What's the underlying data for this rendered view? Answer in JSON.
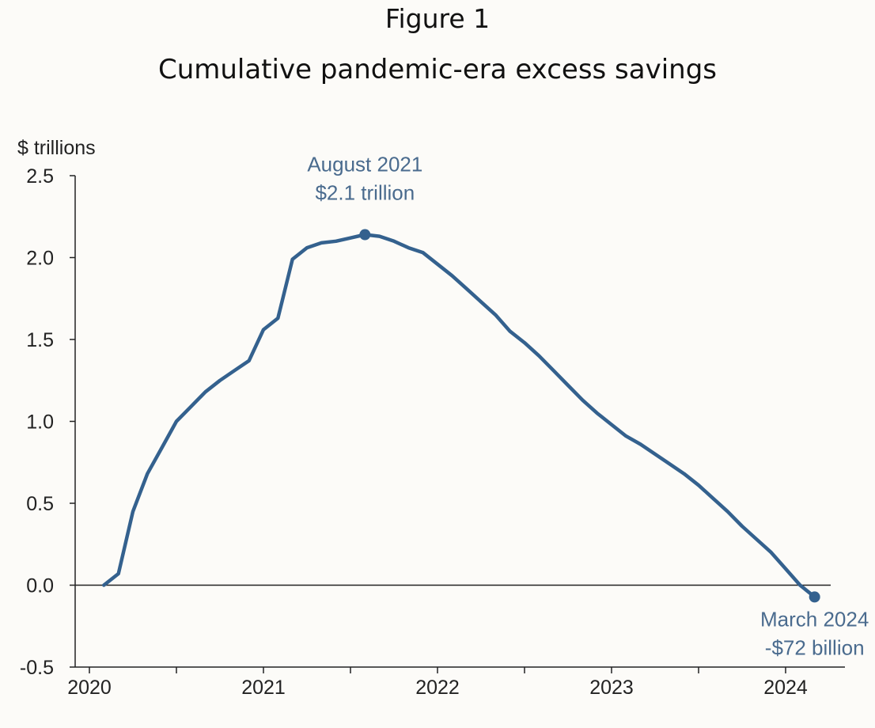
{
  "figure_label": "Figure 1",
  "title": "Cumulative pandemic-era excess savings",
  "colors": {
    "line": "#34618e",
    "annotation": "#4a6b8e",
    "axis": "#222222",
    "background": "#fcfbf8"
  },
  "chart_data": {
    "type": "line",
    "title": "Cumulative pandemic-era excess savings",
    "ylabel": "$ trillions",
    "xlabel": "",
    "ylim": [
      -0.5,
      2.5
    ],
    "xlim": [
      2020,
      2024.5
    ],
    "y_ticks": [
      "2.5",
      "2.0",
      "1.5",
      "1.0",
      "0.5",
      "0.0",
      "-0.5"
    ],
    "y_tick_values": [
      2.5,
      2.0,
      1.5,
      1.0,
      0.5,
      0.0,
      -0.5
    ],
    "x_ticks": [
      "2020",
      "2021",
      "2022",
      "2023",
      "2024"
    ],
    "x_tick_values": [
      2020,
      2021,
      2022,
      2023,
      2024
    ],
    "grid": false,
    "zero_line": true,
    "series": [
      {
        "color": "#34618e",
        "x": [
          "2020-02",
          "2020-03",
          "2020-04",
          "2020-05",
          "2020-06",
          "2020-07",
          "2020-08",
          "2020-09",
          "2020-10",
          "2020-11",
          "2020-12",
          "2021-01",
          "2021-02",
          "2021-03",
          "2021-04",
          "2021-05",
          "2021-06",
          "2021-07",
          "2021-08",
          "2021-09",
          "2021-10",
          "2021-11",
          "2021-12",
          "2022-01",
          "2022-02",
          "2022-03",
          "2022-04",
          "2022-05",
          "2022-06",
          "2022-07",
          "2022-08",
          "2022-09",
          "2022-10",
          "2022-11",
          "2022-12",
          "2023-01",
          "2023-02",
          "2023-03",
          "2023-04",
          "2023-05",
          "2023-06",
          "2023-07",
          "2023-08",
          "2023-09",
          "2023-10",
          "2023-11",
          "2023-12",
          "2024-01",
          "2024-02",
          "2024-03"
        ],
        "values": [
          0.0,
          0.07,
          0.45,
          0.68,
          0.84,
          1.0,
          1.09,
          1.18,
          1.25,
          1.31,
          1.37,
          1.56,
          1.63,
          1.99,
          2.06,
          2.09,
          2.1,
          2.12,
          2.14,
          2.13,
          2.1,
          2.06,
          2.03,
          1.96,
          1.89,
          1.81,
          1.73,
          1.65,
          1.55,
          1.48,
          1.4,
          1.31,
          1.22,
          1.13,
          1.05,
          0.98,
          0.91,
          0.86,
          0.8,
          0.74,
          0.68,
          0.61,
          0.53,
          0.45,
          0.36,
          0.28,
          0.2,
          0.1,
          0.0,
          -0.072
        ]
      }
    ],
    "annotations": [
      {
        "x": "2021-08",
        "y": 2.14,
        "lines": [
          "August 2021",
          "$2.1 trillion"
        ],
        "position": "above"
      },
      {
        "x": "2024-03",
        "y": -0.072,
        "lines": [
          "March 2024",
          "-$72 billion"
        ],
        "position": "below"
      }
    ]
  }
}
